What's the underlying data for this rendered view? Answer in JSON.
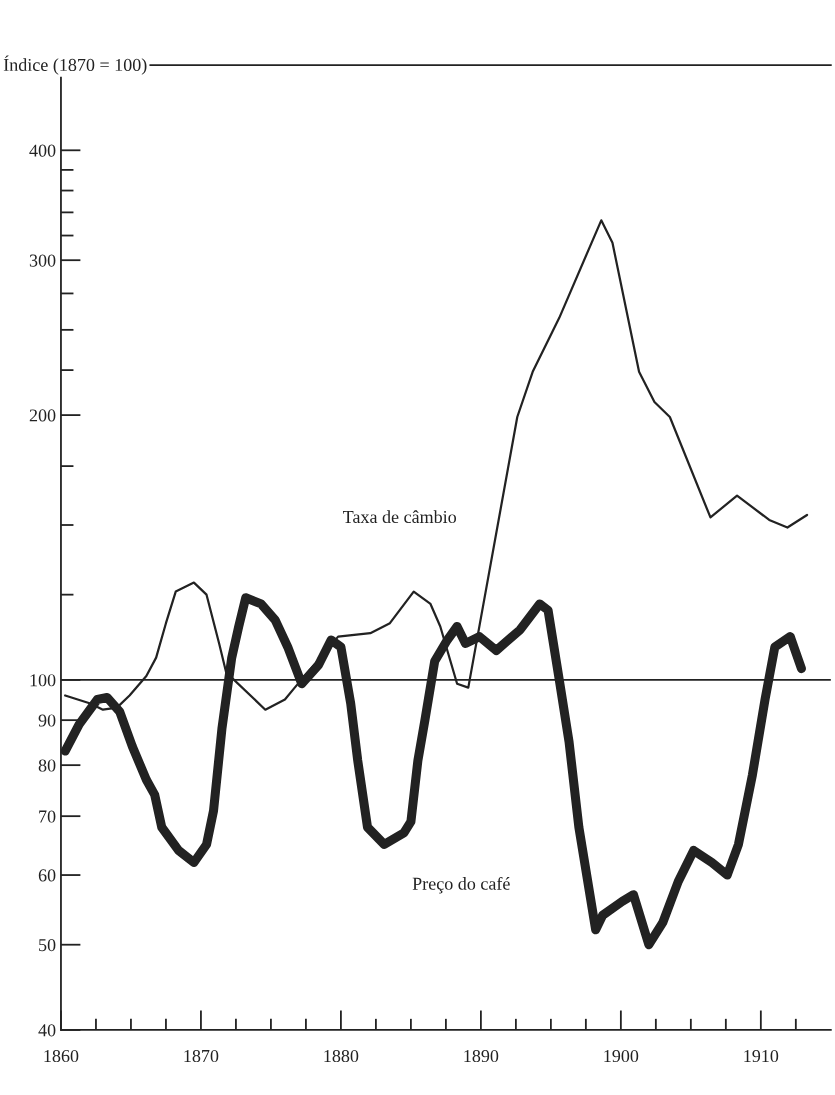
{
  "chart_data": {
    "type": "line",
    "ylabel": "Índice (1870 = 100)",
    "log": "y",
    "xlim": [
      1860,
      1915
    ],
    "ylim": [
      40,
      500
    ],
    "grid": false,
    "legend": false,
    "marker": "none",
    "line_style": "solid",
    "xticks": [
      1860,
      {
        "value": 1862.5,
        "label": null
      },
      {
        "value": 1865,
        "label": null
      },
      {
        "value": 1867.5,
        "label": null
      },
      1870,
      {
        "value": 1872.5,
        "label": null
      },
      {
        "value": 1875,
        "label": null
      },
      {
        "value": 1877.5,
        "label": null
      },
      1880,
      {
        "value": 1882.5,
        "label": null
      },
      {
        "value": 1885,
        "label": null
      },
      {
        "value": 1887.5,
        "label": null
      },
      1890,
      {
        "value": 1892.5,
        "label": null
      },
      {
        "value": 1895,
        "label": null
      },
      {
        "value": 1897.5,
        "label": null
      },
      1900,
      {
        "value": 1902.5,
        "label": null
      },
      {
        "value": 1905,
        "label": null
      },
      {
        "value": 1907.5,
        "label": null
      },
      1910,
      {
        "value": 1912.5,
        "label": null
      }
    ],
    "yticks": [
      40,
      50,
      60,
      70,
      80,
      90,
      100,
      {
        "value": 125,
        "label": null
      },
      {
        "value": 150,
        "label": null
      },
      {
        "value": 175,
        "label": null
      },
      200,
      {
        "value": 225,
        "label": null
      },
      {
        "value": 250,
        "label": null
      },
      {
        "value": 275,
        "label": null
      },
      300,
      {
        "value": 320,
        "label": null
      },
      {
        "value": 340,
        "label": null
      },
      {
        "value": 360,
        "label": null
      },
      {
        "value": 380,
        "label": null
      },
      400
    ],
    "ref_lines": [
      {
        "axis": "y",
        "value": 100,
        "color": "#222222",
        "line_style": "solid"
      }
    ],
    "series": [
      {
        "name": "Taxa de câmbio",
        "color": "#222222",
        "x": [
          1860.3,
          1862.1,
          1863,
          1864,
          1864.9,
          1866.1,
          1866.8,
          1867.5,
          1868.2,
          1869.5,
          1870.4,
          1871.3,
          1871.8,
          1874.6,
          1876,
          1876.7,
          1879.8,
          1882.1,
          1883.5,
          1885.2,
          1886.4,
          1887.1,
          1888.3,
          1889.1,
          1892.6,
          1893.7,
          1895.6,
          1898.6,
          1899.4,
          1901.3,
          1902.4,
          1903.5,
          1906.4,
          1908.3,
          1910.6,
          1911.9,
          1913.3
        ],
        "values": [
          96,
          94,
          92.5,
          93,
          96,
          101,
          106,
          116,
          126,
          129,
          125,
          110,
          102,
          92.5,
          95,
          98,
          112,
          113,
          116,
          126,
          122,
          115,
          99,
          98,
          199,
          224,
          258,
          333,
          314,
          224,
          207,
          199,
          153,
          162,
          152,
          149,
          154
        ]
      },
      {
        "name": "Preço do café",
        "color": "#222222",
        "x": [
          1860.3,
          1861.3,
          1862.6,
          1863.3,
          1864.2,
          1865.1,
          1866.1,
          1866.7,
          1867.2,
          1868.4,
          1869.5,
          1870.4,
          1870.9,
          1871.5,
          1872.2,
          1872.7,
          1873.2,
          1874.3,
          1875.3,
          1876.2,
          1877.2,
          1878.4,
          1879.3,
          1880,
          1880.7,
          1881.2,
          1881.9,
          1883.1,
          1884.5,
          1885,
          1885.5,
          1886,
          1886.7,
          1887.6,
          1888.3,
          1888.9,
          1889.9,
          1891.1,
          1892.8,
          1894.2,
          1894.8,
          1895.6,
          1896.3,
          1897,
          1898.2,
          1898.7,
          1900.1,
          1900.9,
          1902,
          1903,
          1904.1,
          1905.2,
          1906.5,
          1907.6,
          1908.4,
          1909.4,
          1910.3,
          1911,
          1912.1,
          1912.9
        ],
        "values": [
          83,
          89,
          95,
          95.5,
          92,
          84,
          77,
          74,
          68,
          64,
          62,
          65,
          71,
          88,
          106,
          115,
          124,
          122,
          117,
          109,
          99,
          104,
          111,
          109,
          94,
          81,
          68,
          65,
          67,
          69,
          81,
          90,
          105,
          111,
          115,
          110,
          112,
          108,
          114,
          122,
          120,
          100,
          85,
          68,
          52,
          54,
          56,
          57,
          50,
          53,
          59,
          64,
          62,
          60,
          65,
          78,
          95,
          109,
          112,
          103
        ]
      }
    ]
  }
}
